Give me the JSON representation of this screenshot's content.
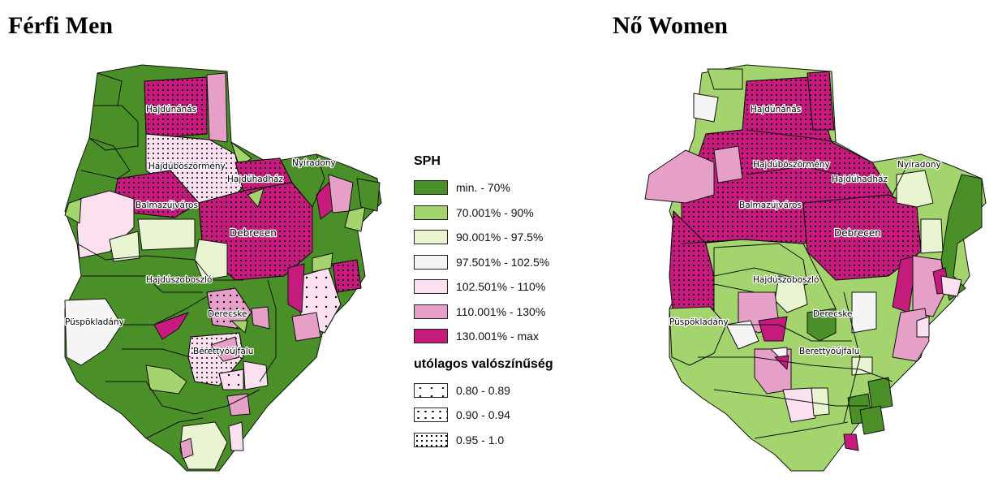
{
  "panels": {
    "men": {
      "title": "Férfi Men"
    },
    "women": {
      "title": "Nő Women"
    }
  },
  "towns": {
    "hajduhadhaz_name": "Hajdúnánás",
    "hajduboszormeny": "Hajdúböszörmény",
    "hajduhadhaz": "Hajdúhadház",
    "nyiradony": "Nyíradony",
    "balmazujvaros": "Balmazújváros",
    "debrecen": "Debrecen",
    "hajduszoboszlo": "Hajdúszoboszló",
    "puspokladany": "Püspökladány",
    "derecske": "Derecske",
    "berettyoujfalu": "Berettyóújfalu"
  },
  "legend": {
    "sph_title": "SPH",
    "sph_classes": [
      {
        "label": "min. - 70%",
        "color": "#4b8f29"
      },
      {
        "label": "70.001% - 90%",
        "color": "#a3d46e"
      },
      {
        "label": "90.001% - 97.5%",
        "color": "#e8f5d0"
      },
      {
        "label": "97.501% - 102.5%",
        "color": "#f5f5f5"
      },
      {
        "label": "102.501% - 110%",
        "color": "#fbe1ef"
      },
      {
        "label": "110.001% - 130%",
        "color": "#e6a0c8"
      },
      {
        "label": "130.001% - max",
        "color": "#c51b7d"
      }
    ],
    "prob_title": "utólagos valószínűség",
    "prob_classes": [
      {
        "label": "0.80 - 0.89",
        "pattern": "sparse-dots"
      },
      {
        "label": "0.90 - 0.94",
        "pattern": "medium-dots"
      },
      {
        "label": "0.95 - 1.0",
        "pattern": "dense-dots"
      }
    ]
  }
}
